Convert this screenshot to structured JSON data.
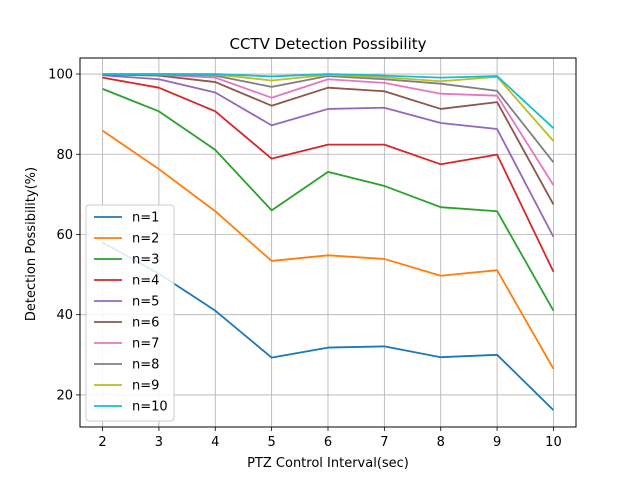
{
  "chart_data": {
    "type": "line",
    "title": "CCTV Detection Possibility",
    "xlabel": "PTZ Control Interval(sec)",
    "ylabel": "Detection Possibility(%)",
    "x": [
      2,
      3,
      4,
      5,
      6,
      7,
      8,
      9,
      10
    ],
    "xlim": [
      1.6,
      10.4
    ],
    "ylim": [
      12,
      104
    ],
    "xticks": [
      2,
      3,
      4,
      5,
      6,
      7,
      8,
      9,
      10
    ],
    "yticks": [
      20,
      40,
      60,
      80,
      100
    ],
    "grid": true,
    "legend_position": "lower-left",
    "series": [
      {
        "name": "n=1",
        "color": "#1f77b4",
        "values": [
          58.0,
          50.2,
          41.0,
          29.3,
          31.8,
          32.1,
          29.4,
          30.0,
          16.2
        ]
      },
      {
        "name": "n=2",
        "color": "#ff7f0e",
        "values": [
          85.9,
          76.3,
          65.8,
          53.4,
          54.8,
          53.9,
          49.7,
          51.1,
          26.5
        ]
      },
      {
        "name": "n=3",
        "color": "#2ca02c",
        "values": [
          96.3,
          90.7,
          81.1,
          66.0,
          75.6,
          72.1,
          66.8,
          65.8,
          41.0
        ]
      },
      {
        "name": "n=4",
        "color": "#d62728",
        "values": [
          99.1,
          96.6,
          90.7,
          78.9,
          82.4,
          82.4,
          77.5,
          79.9,
          50.7
        ]
      },
      {
        "name": "n=5",
        "color": "#9467bd",
        "values": [
          99.7,
          98.7,
          95.4,
          87.2,
          91.3,
          91.6,
          87.8,
          86.3,
          59.4
        ]
      },
      {
        "name": "n=6",
        "color": "#8c564b",
        "values": [
          99.9,
          99.6,
          98.0,
          92.1,
          96.6,
          95.7,
          91.3,
          93.0,
          67.5
        ]
      },
      {
        "name": "n=7",
        "color": "#e377c2",
        "values": [
          100,
          99.8,
          99.1,
          94.1,
          98.7,
          97.8,
          95.1,
          94.6,
          72.3
        ]
      },
      {
        "name": "n=8",
        "color": "#7f7f7f",
        "values": [
          100,
          99.9,
          99.6,
          96.8,
          99.5,
          98.7,
          97.6,
          95.8,
          78.0
        ]
      },
      {
        "name": "n=9",
        "color": "#bcbd22",
        "values": [
          100,
          100,
          99.9,
          98.4,
          99.8,
          99.2,
          98.2,
          99.3,
          83.3
        ]
      },
      {
        "name": "n=10",
        "color": "#17becf",
        "values": [
          100,
          100,
          100,
          99.4,
          100,
          99.6,
          99.1,
          99.5,
          86.5
        ]
      }
    ]
  }
}
